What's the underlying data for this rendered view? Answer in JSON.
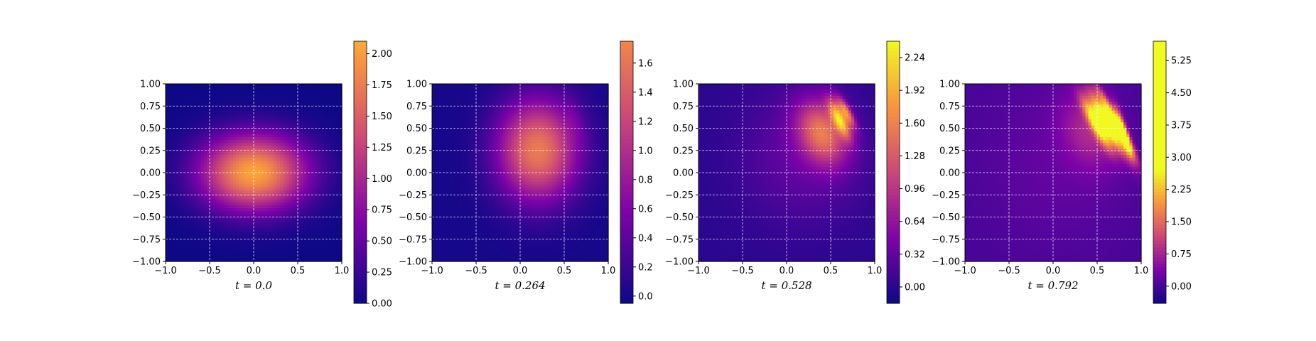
{
  "chart_data": [
    {
      "type": "heatmap",
      "xlabel": "t = 0.0",
      "xlim": [
        -1.0,
        1.0
      ],
      "ylim": [
        -1.0,
        1.0
      ],
      "xticks": [
        "−1.0",
        "−0.5",
        "0.0",
        "0.5",
        "1.0"
      ],
      "yticks": [
        "1.00",
        "0.75",
        "0.50",
        "0.25",
        "0.00",
        "−0.25",
        "−0.50",
        "−0.75",
        "−1.00"
      ],
      "grid": true,
      "colormap": "plasma",
      "colorbar": {
        "range": [
          0.0,
          2.1
        ],
        "norm_max": 2.6,
        "ticks": [
          {
            "v": 2.0,
            "label": "2.00"
          },
          {
            "v": 1.75,
            "label": "1.75"
          },
          {
            "v": 1.5,
            "label": "1.50"
          },
          {
            "v": 1.25,
            "label": "1.25"
          },
          {
            "v": 1.0,
            "label": "1.00"
          },
          {
            "v": 0.75,
            "label": "0.75"
          },
          {
            "v": 0.5,
            "label": "0.50"
          },
          {
            "v": 0.25,
            "label": "0.25"
          },
          {
            "v": 0.0,
            "label": "0.00"
          }
        ]
      },
      "field": {
        "blobs": [
          {
            "x": 0.0,
            "y": 0.0,
            "sx": 0.42,
            "sy": 0.3,
            "amp": 2.05,
            "rot": 0
          }
        ]
      }
    },
    {
      "type": "heatmap",
      "xlabel": "t = 0.264",
      "xlim": [
        -1.0,
        1.0
      ],
      "ylim": [
        -1.0,
        1.0
      ],
      "xticks": [
        "−1.0",
        "−0.5",
        "0.0",
        "0.5",
        "1.0"
      ],
      "yticks": [
        "1.00",
        "0.75",
        "0.50",
        "0.25",
        "0.00",
        "−0.25",
        "−0.50",
        "−0.75",
        "−1.00"
      ],
      "grid": true,
      "colormap": "plasma",
      "colorbar": {
        "range": [
          -0.05,
          1.75
        ],
        "norm_max": 2.5,
        "ticks": [
          {
            "v": 1.6,
            "label": "1.6"
          },
          {
            "v": 1.4,
            "label": "1.4"
          },
          {
            "v": 1.2,
            "label": "1.2"
          },
          {
            "v": 1.0,
            "label": "1.0"
          },
          {
            "v": 0.8,
            "label": "0.8"
          },
          {
            "v": 0.6,
            "label": "0.6"
          },
          {
            "v": 0.4,
            "label": "0.4"
          },
          {
            "v": 0.2,
            "label": "0.2"
          },
          {
            "v": 0.0,
            "label": "0.0"
          }
        ]
      },
      "field": {
        "blobs": [
          {
            "x": 0.2,
            "y": 0.25,
            "sx": 0.32,
            "sy": 0.4,
            "amp": 1.65,
            "rot": 0
          },
          {
            "x": 0.62,
            "y": 0.6,
            "sx": 0.06,
            "sy": 0.18,
            "amp": 0.12,
            "rot": 0.3
          }
        ]
      }
    },
    {
      "type": "heatmap",
      "xlabel": "t = 0.528",
      "xlim": [
        -1.0,
        1.0
      ],
      "ylim": [
        -1.0,
        1.0
      ],
      "xticks": [
        "−1.0",
        "−0.5",
        "0.0",
        "0.5",
        "1.0"
      ],
      "yticks": [
        "1.00",
        "0.75",
        "0.50",
        "0.25",
        "0.00",
        "−0.25",
        "−0.50",
        "−0.75",
        "−1.00"
      ],
      "grid": true,
      "colormap": "plasma",
      "colorbar": {
        "range": [
          -0.16,
          2.4
        ],
        "norm_max": 2.4,
        "ticks": [
          {
            "v": 2.24,
            "label": "2.24"
          },
          {
            "v": 1.92,
            "label": "1.92"
          },
          {
            "v": 1.6,
            "label": "1.60"
          },
          {
            "v": 1.28,
            "label": "1.28"
          },
          {
            "v": 0.96,
            "label": "0.96"
          },
          {
            "v": 0.64,
            "label": "0.64"
          },
          {
            "v": 0.32,
            "label": "0.32"
          },
          {
            "v": 0.0,
            "label": "0.00"
          }
        ]
      },
      "field": {
        "blobs": [
          {
            "x": 0.2,
            "y": 0.2,
            "sx": 0.5,
            "sy": 0.55,
            "amp": 0.35,
            "rot": 0
          },
          {
            "x": 0.4,
            "y": 0.45,
            "sx": 0.18,
            "sy": 0.26,
            "amp": 1.3,
            "rot": 0.4
          },
          {
            "x": 0.6,
            "y": 0.6,
            "sx": 0.05,
            "sy": 0.16,
            "amp": 1.7,
            "rot": 0.45
          },
          {
            "x": 0.68,
            "y": 0.68,
            "sx": 0.035,
            "sy": 0.13,
            "amp": 1.3,
            "rot": 0.5
          }
        ]
      }
    },
    {
      "type": "heatmap",
      "xlabel": "t = 0.792",
      "xlim": [
        -1.0,
        1.0
      ],
      "ylim": [
        -1.0,
        1.0
      ],
      "xticks": [
        "−1.0",
        "−0.5",
        "0.0",
        "0.5",
        "1.0"
      ],
      "yticks": [
        "1.00",
        "0.75",
        "0.50",
        "0.25",
        "0.00",
        "−0.25",
        "−0.50",
        "−0.75",
        "−1.00"
      ],
      "grid": true,
      "colormap": "plasma",
      "colorbar": {
        "range": [
          -0.4,
          5.7
        ],
        "norm_max": 2.7,
        "ticks": [
          {
            "v": 5.25,
            "label": "5.25"
          },
          {
            "v": 4.5,
            "label": "4.50"
          },
          {
            "v": 3.75,
            "label": "3.75"
          },
          {
            "v": 3.0,
            "label": "3.00"
          },
          {
            "v": 2.25,
            "label": "2.25"
          },
          {
            "v": 1.5,
            "label": "1.50"
          },
          {
            "v": 0.75,
            "label": "0.75"
          },
          {
            "v": 0.0,
            "label": "0.00"
          }
        ]
      },
      "field": {
        "blobs": [
          {
            "x": 0.05,
            "y": 0.1,
            "sx": 0.55,
            "sy": 0.65,
            "amp": 0.2,
            "rot": 0
          },
          {
            "x": 0.4,
            "y": 0.45,
            "sx": 0.2,
            "sy": 0.3,
            "amp": 0.7,
            "rot": 0.4
          },
          {
            "x": 0.5,
            "y": 0.55,
            "sx": 0.05,
            "sy": 0.22,
            "amp": 2.8,
            "rot": 0.5
          },
          {
            "x": 0.62,
            "y": 0.55,
            "sx": 0.04,
            "sy": 0.25,
            "amp": 3.0,
            "rot": 0.5
          },
          {
            "x": 0.72,
            "y": 0.55,
            "sx": 0.035,
            "sy": 0.28,
            "amp": 3.0,
            "rot": 0.5
          },
          {
            "x": 0.8,
            "y": 0.45,
            "sx": 0.03,
            "sy": 0.2,
            "amp": 2.2,
            "rot": 0.3
          }
        ]
      }
    }
  ]
}
